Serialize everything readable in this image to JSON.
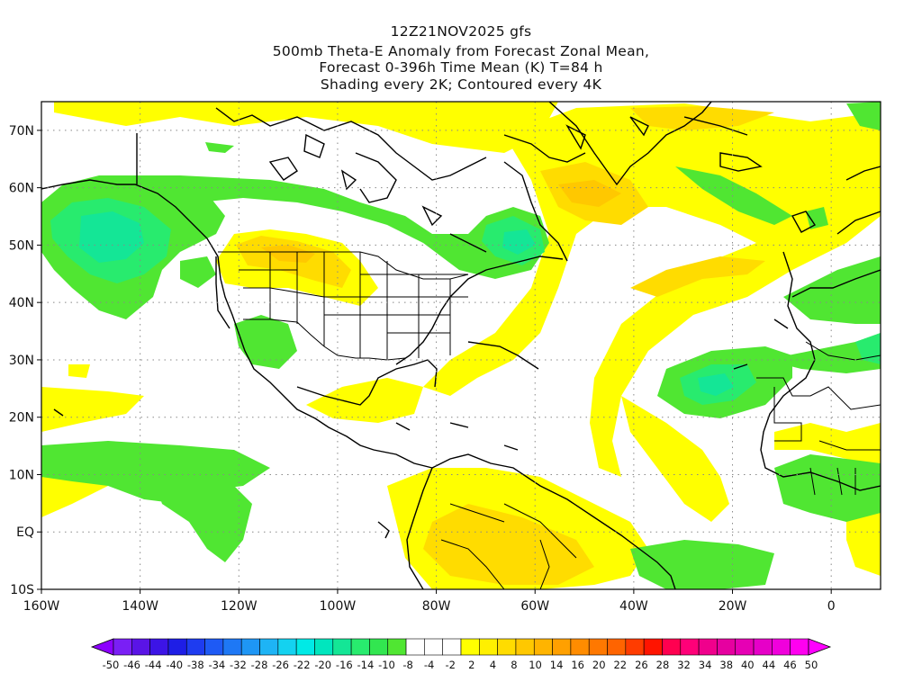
{
  "titles": {
    "line1": "12Z21NOV2025 gfs",
    "line2": "500mb Theta-E Anomaly from Forecast Zonal Mean,",
    "line3": "Forecast 0-396h Time Mean (K) T=84 h",
    "line4": "Shading every 2K; Contoured every 4K"
  },
  "map": {
    "lon_range": [
      -160,
      10
    ],
    "lat_range": [
      -10,
      75
    ],
    "lon_ticks": [
      {
        "value": -160,
        "label": "160W"
      },
      {
        "value": -140,
        "label": "140W"
      },
      {
        "value": -120,
        "label": "120W"
      },
      {
        "value": -100,
        "label": "100W"
      },
      {
        "value": -80,
        "label": "80W"
      },
      {
        "value": -60,
        "label": "60W"
      },
      {
        "value": -40,
        "label": "40W"
      },
      {
        "value": -20,
        "label": "20W"
      },
      {
        "value": 0,
        "label": "0"
      }
    ],
    "lat_ticks": [
      {
        "value": -10,
        "label": "10S"
      },
      {
        "value": 0,
        "label": "EQ"
      },
      {
        "value": 10,
        "label": "10N"
      },
      {
        "value": 20,
        "label": "20N"
      },
      {
        "value": 30,
        "label": "30N"
      },
      {
        "value": 40,
        "label": "40N"
      },
      {
        "value": 50,
        "label": "50N"
      },
      {
        "value": 60,
        "label": "60N"
      },
      {
        "value": 70,
        "label": "70N"
      }
    ],
    "grid": "dotted"
  },
  "colorbar": {
    "colors": [
      "#8c00ff",
      "#7a1ff5",
      "#5a14e6",
      "#3c14e6",
      "#1e1ee6",
      "#1e3cf0",
      "#1e5af5",
      "#1e78f5",
      "#1e96f5",
      "#1eb4f5",
      "#14d2f0",
      "#00eae6",
      "#00e6be",
      "#14e696",
      "#28eb6e",
      "#32e650",
      "#50e632",
      "#ffffff",
      "#ffffff",
      "#ffffff",
      "#ffff00",
      "#fff000",
      "#ffdc00",
      "#ffc800",
      "#ffb400",
      "#ffa000",
      "#ff8c00",
      "#ff7800",
      "#ff6400",
      "#ff3c00",
      "#ff1400",
      "#ff0050",
      "#ff0078",
      "#f0008c",
      "#e600a0",
      "#e600b4",
      "#e600c8",
      "#f000dc",
      "#ff00f0",
      "#ff00ff"
    ],
    "labels": [
      "-50",
      "-46",
      "-44",
      "-40",
      "-38",
      "-34",
      "-32",
      "-28",
      "-26",
      "-22",
      "-20",
      "-16",
      "-14",
      "-10",
      "-8",
      "-4",
      "-2",
      "2",
      "4",
      "8",
      "10",
      "14",
      "16",
      "20",
      "22",
      "26",
      "28",
      "32",
      "34",
      "38",
      "40",
      "44",
      "46",
      "50"
    ]
  }
}
